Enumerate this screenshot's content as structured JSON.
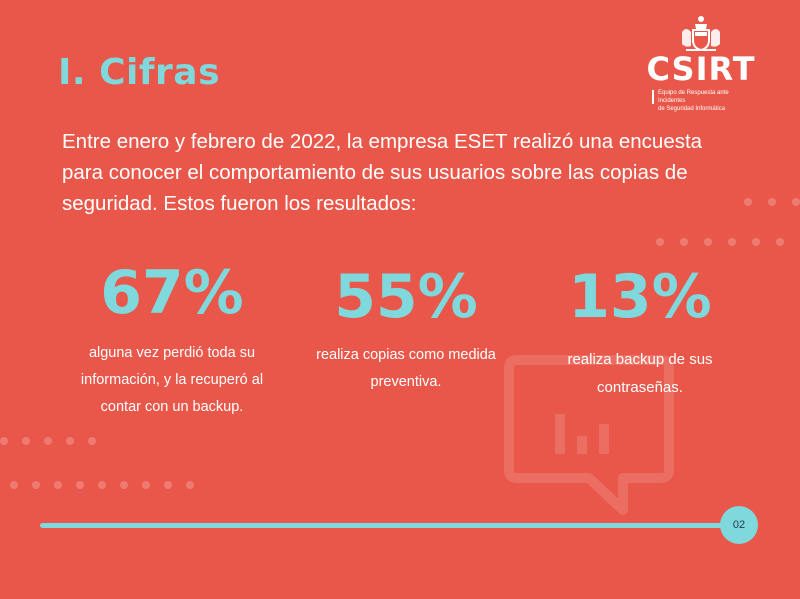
{
  "slide": {
    "title": "I. Cifras",
    "logo": {
      "name": "CSIRT",
      "subtitle_line1": "Equipo de Respuesta ante Incidentes",
      "subtitle_line2": "de Seguridad Informática"
    },
    "intro": "Entre enero y febrero de 2022, la empresa ESET realizó una encuesta para conocer el comportamiento de sus usuarios sobre las copias de seguridad. Estos fueron los resultados:",
    "stats": [
      {
        "value": "67%",
        "description": "alguna vez perdió toda su información, y la recuperó al contar con un backup."
      },
      {
        "value": "55%",
        "description": "realiza copias como medida preventiva."
      },
      {
        "value": "13%",
        "description": "realiza backup de sus contraseñas."
      }
    ],
    "page_number": "02"
  },
  "colors": {
    "background": "#e9574a",
    "accent": "#7fd8dc",
    "text": "#ffffff"
  },
  "icons": [
    "coat-of-arms-icon",
    "chat-bar-chart-icon"
  ]
}
